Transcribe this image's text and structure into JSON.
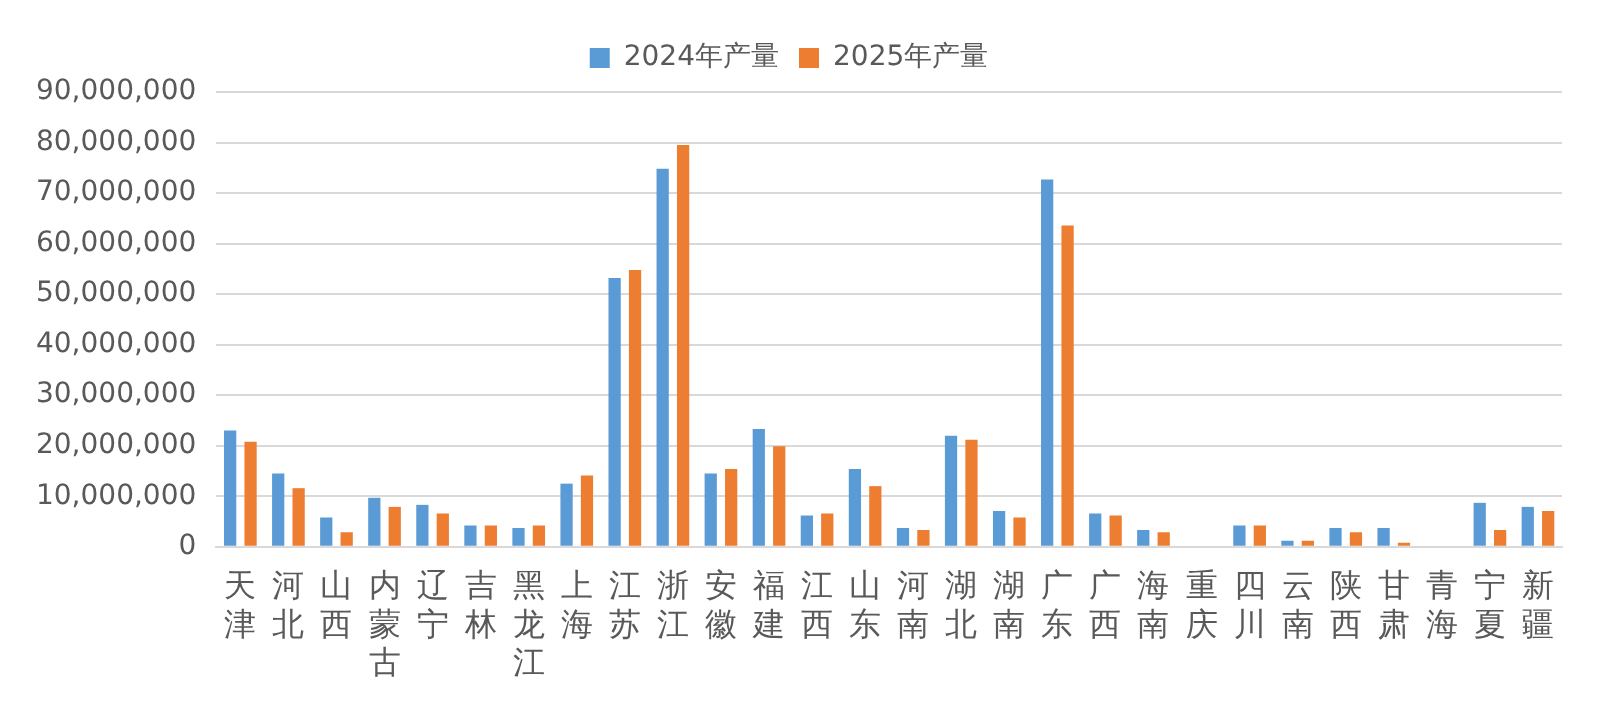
{
  "chart_data": {
    "type": "bar",
    "categories": [
      "天津",
      "河北",
      "山西",
      "内蒙古",
      "辽宁",
      "吉林",
      "黑龙江",
      "上海",
      "江苏",
      "浙江",
      "安徽",
      "福建",
      "江西",
      "山东",
      "河南",
      "湖北",
      "湖南",
      "广东",
      "广西",
      "海南",
      "重庆",
      "四川",
      "云南",
      "陕西",
      "甘肃",
      "青海",
      "宁夏",
      "新疆"
    ],
    "series": [
      {
        "name": "2024年产量",
        "color": "#5b9bd5",
        "values": [
          23000000,
          14500000,
          5800000,
          9700000,
          8300000,
          4200000,
          3700000,
          12500000,
          53200000,
          74800000,
          14500000,
          23300000,
          6200000,
          15400000,
          3700000,
          22000000,
          7100000,
          72700000,
          6600000,
          3300000,
          0,
          4200000,
          1200000,
          3700000,
          3700000,
          0,
          8700000,
          7900000
        ]
      },
      {
        "name": "2025年产量",
        "color": "#ed7d31",
        "values": [
          20800000,
          11600000,
          2900000,
          7900000,
          6600000,
          4200000,
          4200000,
          14100000,
          54800000,
          79500000,
          15400000,
          19900000,
          6600000,
          12000000,
          3300000,
          21200000,
          5800000,
          63600000,
          6200000,
          2900000,
          0,
          4200000,
          1200000,
          2900000,
          800000,
          0,
          3300000,
          7100000
        ]
      }
    ],
    "ylim": [
      0,
      90000000
    ],
    "yticks": [
      {
        "value": 0,
        "label": "0"
      },
      {
        "value": 10000000,
        "label": "10,000,000"
      },
      {
        "value": 20000000,
        "label": "20,000,000"
      },
      {
        "value": 30000000,
        "label": "30,000,000"
      },
      {
        "value": 40000000,
        "label": "40,000,000"
      },
      {
        "value": 50000000,
        "label": "50,000,000"
      },
      {
        "value": 60000000,
        "label": "60,000,000"
      },
      {
        "value": 70000000,
        "label": "70,000,000"
      },
      {
        "value": 80000000,
        "label": "80,000,000"
      },
      {
        "value": 90000000,
        "label": "90,000,000"
      }
    ],
    "grid": "y",
    "legend": "top"
  }
}
